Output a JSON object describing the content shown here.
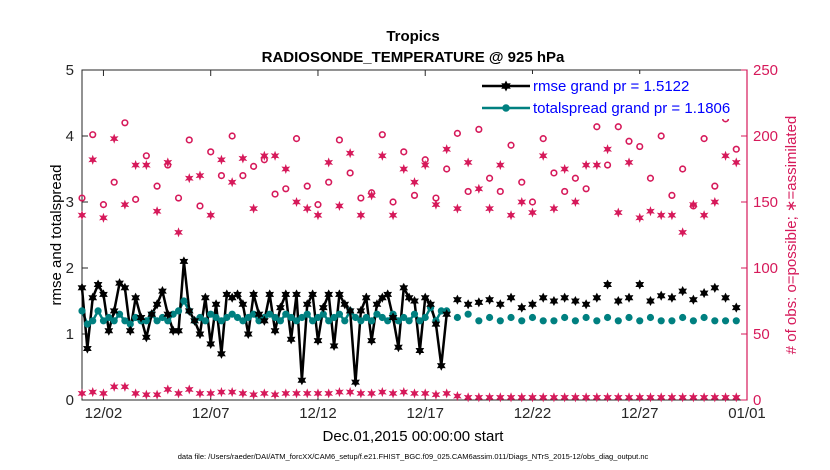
{
  "chart_data": {
    "type": "scatter",
    "title": "Tropics",
    "subtitle": "RADIOSONDE_TEMPERATURE @ 925 hPa",
    "xlabel": "Dec.01,2015 00:00:00 start",
    "ylabel_left": "rmse and totalspread",
    "ylabel_right": "# of obs: o=possible; ∗=assimilated",
    "ylim_left": [
      0,
      5
    ],
    "ylim_right": [
      0,
      250
    ],
    "xlim_days": [
      0,
      31
    ],
    "x_tick_labels": [
      "12/02",
      "12/07",
      "12/12",
      "12/17",
      "12/22",
      "12/27",
      "01/01"
    ],
    "x_tick_days": [
      1,
      6,
      11,
      16,
      21,
      26,
      31
    ],
    "y_left_ticks": [
      0,
      1,
      2,
      3,
      4,
      5
    ],
    "y_right_ticks": [
      0,
      50,
      100,
      150,
      200,
      250
    ],
    "footnote": "data file: /Users/raeder/DAI/ATM_forcXX/CAM6_setup/f.e21.FHIST_BGC.f09_025.CAM6assim.011/Diags_NTrS_2015-12/obs_diag_output.nc",
    "legend": [
      {
        "label": "rmse grand pr = 1.5122",
        "color": "#000000",
        "marker": "hexagram"
      },
      {
        "label": "totalspread grand pr = 1.1806",
        "color": "#008080",
        "marker": "circle"
      }
    ],
    "colors": {
      "rmse": "#000000",
      "spread": "#008080",
      "obs": "#d6195a",
      "legend_text": "#0000ff",
      "right_axis": "#d6195a"
    },
    "series": [
      {
        "name": "rmse",
        "x": [
          0,
          0.25,
          0.5,
          0.75,
          1,
          1.25,
          1.5,
          1.75,
          2,
          2.25,
          2.5,
          2.75,
          3,
          3.25,
          3.5,
          3.75,
          4,
          4.25,
          4.5,
          4.75,
          5,
          5.25,
          5.5,
          5.75,
          6,
          6.25,
          6.5,
          6.75,
          7,
          7.25,
          7.5,
          7.75,
          8,
          8.25,
          8.5,
          8.75,
          9,
          9.25,
          9.5,
          9.75,
          10,
          10.25,
          10.5,
          10.75,
          11,
          11.25,
          11.5,
          11.75,
          12,
          12.25,
          12.5,
          12.75,
          13,
          13.25,
          13.5,
          13.75,
          14,
          14.25,
          14.5,
          14.75,
          15,
          15.25,
          15.5,
          15.75,
          16,
          16.25,
          16.5,
          16.75,
          17,
          17.5,
          18,
          18.5,
          19,
          19.5,
          20,
          20.5,
          21,
          21.5,
          22,
          22.5,
          23,
          23.5,
          24,
          24.5,
          25,
          25.5,
          26,
          26.5,
          27,
          27.5,
          28,
          28.5,
          29,
          29.5,
          30,
          30.5
        ],
        "values": [
          1.7,
          0.78,
          1.55,
          1.75,
          1.6,
          1.05,
          1.35,
          1.77,
          1.7,
          1.05,
          1.55,
          1.25,
          0.95,
          1.3,
          1.45,
          1.65,
          1.3,
          1.05,
          1.05,
          2.1,
          1.35,
          1.2,
          1.0,
          1.55,
          0.85,
          1.45,
          0.7,
          1.6,
          1.55,
          1.6,
          1.45,
          1.0,
          1.6,
          1.3,
          1.2,
          1.6,
          1.05,
          1.4,
          1.6,
          0.92,
          1.6,
          0.3,
          1.45,
          1.6,
          0.9,
          1.4,
          1.6,
          0.82,
          1.6,
          1.45,
          1.35,
          0.27,
          1.35,
          1.55,
          0.9,
          1.45,
          1.55,
          1.6,
          1.25,
          0.8,
          1.7,
          1.55,
          1.5,
          0.75,
          1.55,
          1.45,
          1.15,
          0.52,
          1.3,
          1.52,
          1.45,
          1.48,
          1.52,
          1.45,
          1.55,
          1.4,
          1.45,
          1.55,
          1.5,
          1.55,
          1.5,
          1.45,
          1.55,
          1.75,
          1.5,
          1.55,
          1.75,
          1.5,
          1.58,
          1.55,
          1.65,
          1.52,
          1.62,
          1.7,
          1.55,
          1.4
        ]
      },
      {
        "name": "totalspread",
        "x": [
          0,
          0.25,
          0.5,
          0.75,
          1,
          1.25,
          1.5,
          1.75,
          2,
          2.25,
          2.5,
          2.75,
          3,
          3.25,
          3.5,
          3.75,
          4,
          4.25,
          4.5,
          4.75,
          5,
          5.25,
          5.5,
          5.75,
          6,
          6.25,
          6.5,
          6.75,
          7,
          7.25,
          7.5,
          7.75,
          8,
          8.25,
          8.5,
          8.75,
          9,
          9.25,
          9.5,
          9.75,
          10,
          10.25,
          10.5,
          10.75,
          11,
          11.25,
          11.5,
          11.75,
          12,
          12.25,
          12.5,
          12.75,
          13,
          13.25,
          13.5,
          13.75,
          14,
          14.25,
          14.5,
          14.75,
          15,
          15.25,
          15.5,
          15.75,
          16,
          16.25,
          16.5,
          16.75,
          17,
          17.5,
          18,
          18.5,
          19,
          19.5,
          20,
          20.5,
          21,
          21.5,
          22,
          22.5,
          23,
          23.5,
          24,
          24.5,
          25,
          25.5,
          26,
          26.5,
          27,
          27.5,
          28,
          28.5,
          29,
          29.5,
          30,
          30.5
        ],
        "values": [
          1.35,
          1.15,
          1.2,
          1.35,
          1.2,
          1.25,
          1.2,
          1.3,
          1.2,
          1.15,
          1.25,
          1.2,
          1.2,
          1.3,
          1.2,
          1.25,
          1.2,
          1.3,
          1.35,
          1.5,
          1.35,
          1.2,
          1.25,
          1.2,
          1.3,
          1.25,
          1.2,
          1.25,
          1.3,
          1.25,
          1.2,
          1.25,
          1.3,
          1.2,
          1.25,
          1.3,
          1.25,
          1.2,
          1.3,
          1.25,
          1.2,
          1.25,
          1.3,
          1.2,
          1.25,
          1.3,
          1.2,
          1.25,
          1.3,
          1.2,
          1.35,
          1.25,
          1.2,
          1.25,
          1.2,
          1.3,
          1.25,
          1.2,
          1.3,
          1.2,
          1.25,
          1.2,
          1.3,
          1.2,
          1.25,
          1.4,
          1.2,
          1.35,
          1.35,
          1.25,
          1.3,
          1.2,
          1.25,
          1.2,
          1.25,
          1.2,
          1.25,
          1.2,
          1.2,
          1.25,
          1.2,
          1.25,
          1.2,
          1.25,
          1.2,
          1.25,
          1.2,
          1.25,
          1.2,
          1.2,
          1.25,
          1.2,
          1.25,
          1.2,
          1.2,
          1.2
        ]
      },
      {
        "name": "obs possible (o)",
        "x": [
          0,
          0.5,
          1,
          1.5,
          2,
          2.5,
          3,
          3.5,
          4,
          4.5,
          5,
          5.5,
          6,
          6.5,
          7,
          7.5,
          8,
          8.5,
          9,
          9.5,
          10,
          10.5,
          11,
          11.5,
          12,
          12.5,
          13,
          13.5,
          14,
          14.5,
          15,
          15.5,
          16,
          16.5,
          17,
          17.5,
          18,
          18.5,
          19,
          19.5,
          20,
          20.5,
          21,
          21.5,
          22,
          22.5,
          23,
          23.5,
          24,
          24.5,
          25,
          25.5,
          26,
          26.5,
          27,
          27.5,
          28,
          28.5,
          29,
          29.5,
          30,
          30.5
        ],
        "values": [
          153,
          201,
          148,
          165,
          210,
          152,
          185,
          162,
          178,
          153,
          197,
          147,
          188,
          170,
          200,
          170,
          177,
          182,
          156,
          160,
          198,
          162,
          148,
          165,
          197,
          172,
          153,
          157,
          201,
          150,
          188,
          155,
          182,
          153,
          175,
          202,
          158,
          205,
          168,
          158,
          193,
          165,
          150,
          198,
          172,
          158,
          168,
          160,
          207,
          178,
          207,
          196,
          192,
          168,
          200,
          155,
          175,
          147,
          198,
          162,
          213,
          190
        ]
      },
      {
        "name": "obs assimilated (*)",
        "x": [
          0,
          0.5,
          1,
          1.5,
          2,
          2.5,
          3,
          3.5,
          4,
          4.5,
          5,
          5.5,
          6,
          6.5,
          7,
          7.5,
          8,
          8.5,
          9,
          9.5,
          10,
          10.5,
          11,
          11.5,
          12,
          12.5,
          13,
          13.5,
          14,
          14.5,
          15,
          15.5,
          16,
          16.5,
          17,
          17.5,
          18,
          18.5,
          19,
          19.5,
          20,
          20.5,
          21,
          21.5,
          22,
          22.5,
          23,
          23.5,
          24,
          24.5,
          25,
          25.5,
          26,
          26.5,
          27,
          27.5,
          28,
          28.5,
          29,
          29.5,
          30,
          30.5
        ],
        "values": [
          140,
          182,
          138,
          198,
          148,
          178,
          178,
          143,
          180,
          127,
          168,
          170,
          140,
          182,
          165,
          183,
          145,
          185,
          185,
          175,
          150,
          145,
          140,
          180,
          147,
          187,
          140,
          155,
          185,
          140,
          175,
          165,
          178,
          148,
          190,
          145,
          180,
          160,
          145,
          178,
          140,
          150,
          142,
          185,
          145,
          175,
          150,
          178,
          178,
          190,
          142,
          180,
          138,
          143,
          140,
          140,
          127,
          148,
          140,
          150,
          185,
          180
        ]
      },
      {
        "name": "obs near zero",
        "x": [
          0,
          0.5,
          1,
          1.5,
          2,
          2.5,
          3,
          3.5,
          4,
          4.5,
          5,
          5.5,
          6,
          6.5,
          7,
          7.5,
          8,
          8.5,
          9,
          9.5,
          10,
          10.5,
          11,
          11.5,
          12,
          12.5,
          13,
          13.5,
          14,
          14.5,
          15,
          15.5,
          16,
          16.5,
          17,
          17.5,
          18,
          18.5,
          19,
          19.5,
          20,
          20.5,
          21,
          21.5,
          22,
          22.5,
          23,
          23.5,
          24,
          24.5,
          25,
          25.5,
          26,
          26.5,
          27,
          27.5,
          28,
          28.5,
          29,
          29.5,
          30,
          30.5
        ],
        "values": [
          5,
          6,
          5,
          10,
          10,
          5,
          4,
          4,
          8,
          5,
          8,
          5,
          5,
          6,
          6,
          5,
          4,
          5,
          4,
          5,
          5,
          5,
          5,
          5,
          6,
          6,
          5,
          5,
          6,
          5,
          6,
          5,
          5,
          4,
          5,
          3,
          2,
          2,
          2,
          2,
          2,
          2,
          2,
          2,
          2,
          2,
          2,
          2,
          2,
          2,
          2,
          2,
          2,
          2,
          2,
          2,
          2,
          2,
          2,
          2,
          2,
          2
        ]
      }
    ]
  }
}
